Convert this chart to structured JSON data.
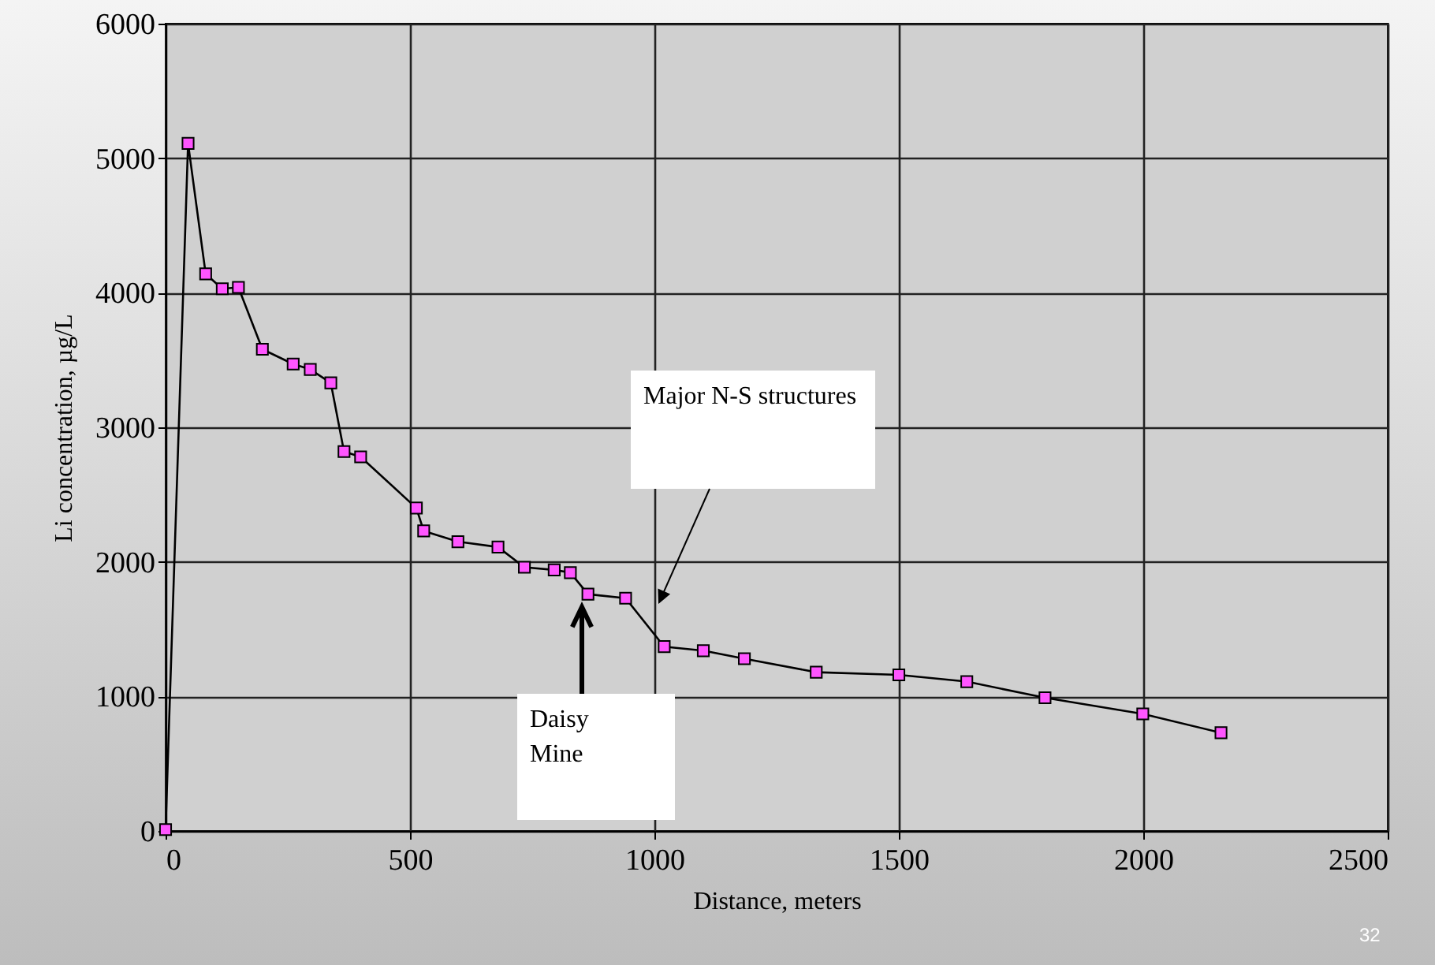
{
  "chart_data": {
    "type": "line",
    "xlabel": "Distance, meters",
    "ylabel": "Li concentration, µg/L",
    "x": [
      0,
      46,
      82,
      116,
      149,
      198,
      261,
      296,
      338,
      365,
      399,
      513,
      528,
      598,
      680,
      734,
      795,
      828,
      864,
      941,
      1020,
      1100,
      1184,
      1331,
      1500,
      1639,
      1799,
      1999,
      2159
    ],
    "series": [
      {
        "color": "#ff55ff",
        "values": [
          10,
          5110,
          4140,
          4030,
          4040,
          3580,
          3470,
          3430,
          3330,
          2820,
          2780,
          2400,
          2230,
          2150,
          2110,
          1960,
          1940,
          1920,
          1760,
          1730,
          1370,
          1340,
          1280,
          1180,
          1160,
          1110,
          990,
          870,
          730
        ]
      }
    ],
    "xlim": [
      0,
      2500
    ],
    "xticks": [
      0,
      500,
      1000,
      1500,
      2000,
      2500
    ],
    "ylim": [
      0,
      6000
    ],
    "yticks": [
      0,
      1000,
      2000,
      3000,
      4000,
      5000,
      6000
    ],
    "grid": true,
    "marker": "square",
    "line_style": "solid",
    "annotations": [
      "Major N-S structures",
      "Daisy Mine",
      "32"
    ]
  }
}
